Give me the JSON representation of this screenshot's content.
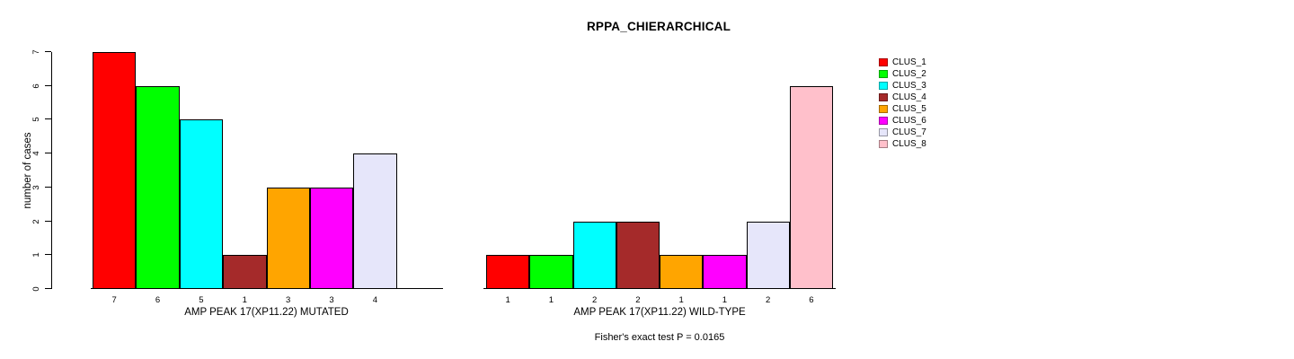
{
  "title": "RPPA_CHIERARCHICAL",
  "ylabel": "number of cases",
  "caption": "Fisher's exact test P = 0.0165",
  "legend": {
    "position": "right",
    "entries": [
      {
        "label": "CLUS_1",
        "color": "#FF0000"
      },
      {
        "label": "CLUS_2",
        "color": "#00FF00"
      },
      {
        "label": "CLUS_3",
        "color": "#00FFFF"
      },
      {
        "label": "CLUS_4",
        "color": "#A52A2A"
      },
      {
        "label": "CLUS_5",
        "color": "#FFA500"
      },
      {
        "label": "CLUS_6",
        "color": "#FF00FF"
      },
      {
        "label": "CLUS_7",
        "color": "#E6E6FA"
      },
      {
        "label": "CLUS_8",
        "color": "#FFC0CB"
      }
    ]
  },
  "chart_data": [
    {
      "type": "bar",
      "title": "RPPA_CHIERARCHICAL",
      "xlabel": "AMP PEAK 17(XP11.22) MUTATED",
      "ylabel": "number of cases",
      "categories": [
        "CLUS_1",
        "CLUS_2",
        "CLUS_3",
        "CLUS_4",
        "CLUS_5",
        "CLUS_6",
        "CLUS_7",
        "CLUS_8"
      ],
      "values": [
        7,
        6,
        5,
        1,
        3,
        3,
        4,
        0
      ],
      "bar_labels": [
        "7",
        "6",
        "5",
        "1",
        "3",
        "3",
        "4",
        ""
      ],
      "colors": [
        "#FF0000",
        "#00FF00",
        "#00FFFF",
        "#A52A2A",
        "#FFA500",
        "#FF00FF",
        "#E6E6FA",
        "#FFC0CB"
      ],
      "ylim": [
        0,
        7
      ],
      "yticks": [
        0,
        1,
        2,
        3,
        4,
        5,
        6,
        7
      ],
      "grid": false,
      "y_axis_shown": true
    },
    {
      "type": "bar",
      "title": "",
      "xlabel": "AMP PEAK 17(XP11.22) WILD-TYPE",
      "ylabel": "",
      "categories": [
        "CLUS_1",
        "CLUS_2",
        "CLUS_3",
        "CLUS_4",
        "CLUS_5",
        "CLUS_6",
        "CLUS_7",
        "CLUS_8"
      ],
      "values": [
        1,
        1,
        2,
        2,
        1,
        1,
        2,
        6
      ],
      "bar_labels": [
        "1",
        "1",
        "2",
        "2",
        "1",
        "1",
        "2",
        "6"
      ],
      "colors": [
        "#FF0000",
        "#00FF00",
        "#00FFFF",
        "#A52A2A",
        "#FFA500",
        "#FF00FF",
        "#E6E6FA",
        "#FFC0CB"
      ],
      "ylim": [
        0,
        7
      ],
      "yticks": [],
      "grid": false,
      "y_axis_shown": false
    }
  ]
}
